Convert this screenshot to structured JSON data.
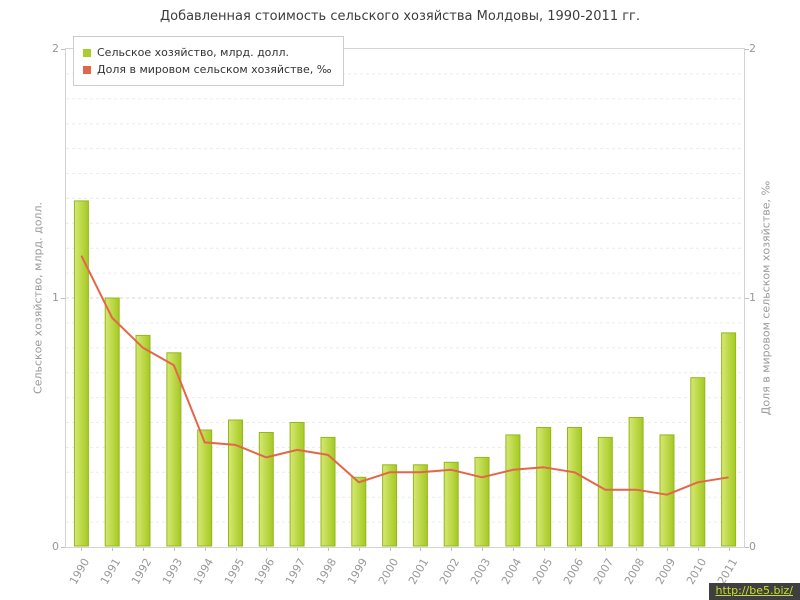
{
  "title": "Добавленная стоимость сельского хозяйства Молдовы, 1990-2011 гг.",
  "legend": [
    {
      "label": "Сельское хозяйство, млрд. долл.",
      "color": "#a9cd2c"
    },
    {
      "label": "Доля в мировом сельском хозяйстве, ‰",
      "color": "#e2674a"
    }
  ],
  "watermark": "http://be5.biz/",
  "axes": {
    "left_title": "Сельское хозяйство, млрд. долл.",
    "right_title": "Доля в мировом сельском хозяйстве, ‰",
    "yticks": [
      0,
      1,
      2
    ]
  },
  "chart_data": {
    "type": "bar",
    "title": "Добавленная стоимость сельского хозяйства Молдовы, 1990-2011 гг.",
    "categories": [
      "1990",
      "1991",
      "1992",
      "1993",
      "1994",
      "1995",
      "1996",
      "1997",
      "1998",
      "1999",
      "2000",
      "2001",
      "2002",
      "2003",
      "2004",
      "2005",
      "2006",
      "2007",
      "2008",
      "2009",
      "2010",
      "2011"
    ],
    "series": [
      {
        "name": "Сельское хозяйство, млрд. долл.",
        "type": "bar",
        "color": "#a9cd2c",
        "values": [
          1.39,
          1.0,
          0.85,
          0.78,
          0.47,
          0.51,
          0.46,
          0.5,
          0.44,
          0.28,
          0.33,
          0.33,
          0.34,
          0.36,
          0.45,
          0.48,
          0.48,
          0.44,
          0.52,
          0.45,
          0.68,
          0.86
        ]
      },
      {
        "name": "Доля в мировом сельском хозяйстве, ‰",
        "type": "line",
        "color": "#e2674a",
        "values": [
          1.17,
          0.92,
          0.8,
          0.73,
          0.42,
          0.41,
          0.36,
          0.39,
          0.37,
          0.26,
          0.3,
          0.3,
          0.31,
          0.28,
          0.31,
          0.32,
          0.3,
          0.23,
          0.23,
          0.21,
          0.26,
          0.28
        ]
      }
    ],
    "ylabel_left": "Сельское хозяйство, млрд. долл.",
    "ylabel_right": "Доля в мировом сельском хозяйстве, ‰",
    "ylim": [
      0,
      2
    ],
    "yticks": [
      0,
      1,
      2
    ],
    "grid": true,
    "legend_position": "top-left"
  }
}
